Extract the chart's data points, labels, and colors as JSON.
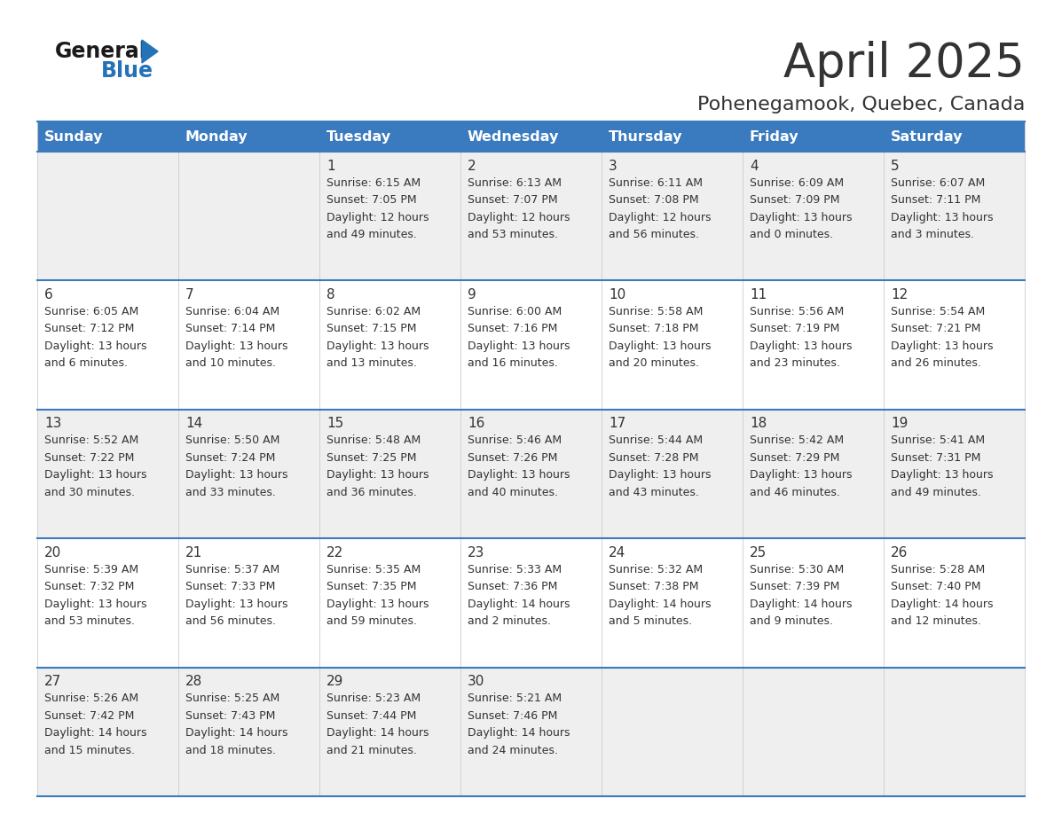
{
  "title": "April 2025",
  "subtitle": "Pohenegamook, Quebec, Canada",
  "header_bg": "#3a7abf",
  "header_text": "#ffffff",
  "row_bg_odd": "#efefef",
  "row_bg_even": "#ffffff",
  "separator_color": "#3a7abf",
  "text_color": "#333333",
  "days_of_week": [
    "Sunday",
    "Monday",
    "Tuesday",
    "Wednesday",
    "Thursday",
    "Friday",
    "Saturday"
  ],
  "logo_general_color": "#1a1a1a",
  "logo_blue_color": "#2472b8",
  "logo_triangle_color": "#2472b8",
  "calendar": [
    [
      {
        "day": "",
        "lines": []
      },
      {
        "day": "",
        "lines": []
      },
      {
        "day": "1",
        "lines": [
          "Sunrise: 6:15 AM",
          "Sunset: 7:05 PM",
          "Daylight: 12 hours",
          "and 49 minutes."
        ]
      },
      {
        "day": "2",
        "lines": [
          "Sunrise: 6:13 AM",
          "Sunset: 7:07 PM",
          "Daylight: 12 hours",
          "and 53 minutes."
        ]
      },
      {
        "day": "3",
        "lines": [
          "Sunrise: 6:11 AM",
          "Sunset: 7:08 PM",
          "Daylight: 12 hours",
          "and 56 minutes."
        ]
      },
      {
        "day": "4",
        "lines": [
          "Sunrise: 6:09 AM",
          "Sunset: 7:09 PM",
          "Daylight: 13 hours",
          "and 0 minutes."
        ]
      },
      {
        "day": "5",
        "lines": [
          "Sunrise: 6:07 AM",
          "Sunset: 7:11 PM",
          "Daylight: 13 hours",
          "and 3 minutes."
        ]
      }
    ],
    [
      {
        "day": "6",
        "lines": [
          "Sunrise: 6:05 AM",
          "Sunset: 7:12 PM",
          "Daylight: 13 hours",
          "and 6 minutes."
        ]
      },
      {
        "day": "7",
        "lines": [
          "Sunrise: 6:04 AM",
          "Sunset: 7:14 PM",
          "Daylight: 13 hours",
          "and 10 minutes."
        ]
      },
      {
        "day": "8",
        "lines": [
          "Sunrise: 6:02 AM",
          "Sunset: 7:15 PM",
          "Daylight: 13 hours",
          "and 13 minutes."
        ]
      },
      {
        "day": "9",
        "lines": [
          "Sunrise: 6:00 AM",
          "Sunset: 7:16 PM",
          "Daylight: 13 hours",
          "and 16 minutes."
        ]
      },
      {
        "day": "10",
        "lines": [
          "Sunrise: 5:58 AM",
          "Sunset: 7:18 PM",
          "Daylight: 13 hours",
          "and 20 minutes."
        ]
      },
      {
        "day": "11",
        "lines": [
          "Sunrise: 5:56 AM",
          "Sunset: 7:19 PM",
          "Daylight: 13 hours",
          "and 23 minutes."
        ]
      },
      {
        "day": "12",
        "lines": [
          "Sunrise: 5:54 AM",
          "Sunset: 7:21 PM",
          "Daylight: 13 hours",
          "and 26 minutes."
        ]
      }
    ],
    [
      {
        "day": "13",
        "lines": [
          "Sunrise: 5:52 AM",
          "Sunset: 7:22 PM",
          "Daylight: 13 hours",
          "and 30 minutes."
        ]
      },
      {
        "day": "14",
        "lines": [
          "Sunrise: 5:50 AM",
          "Sunset: 7:24 PM",
          "Daylight: 13 hours",
          "and 33 minutes."
        ]
      },
      {
        "day": "15",
        "lines": [
          "Sunrise: 5:48 AM",
          "Sunset: 7:25 PM",
          "Daylight: 13 hours",
          "and 36 minutes."
        ]
      },
      {
        "day": "16",
        "lines": [
          "Sunrise: 5:46 AM",
          "Sunset: 7:26 PM",
          "Daylight: 13 hours",
          "and 40 minutes."
        ]
      },
      {
        "day": "17",
        "lines": [
          "Sunrise: 5:44 AM",
          "Sunset: 7:28 PM",
          "Daylight: 13 hours",
          "and 43 minutes."
        ]
      },
      {
        "day": "18",
        "lines": [
          "Sunrise: 5:42 AM",
          "Sunset: 7:29 PM",
          "Daylight: 13 hours",
          "and 46 minutes."
        ]
      },
      {
        "day": "19",
        "lines": [
          "Sunrise: 5:41 AM",
          "Sunset: 7:31 PM",
          "Daylight: 13 hours",
          "and 49 minutes."
        ]
      }
    ],
    [
      {
        "day": "20",
        "lines": [
          "Sunrise: 5:39 AM",
          "Sunset: 7:32 PM",
          "Daylight: 13 hours",
          "and 53 minutes."
        ]
      },
      {
        "day": "21",
        "lines": [
          "Sunrise: 5:37 AM",
          "Sunset: 7:33 PM",
          "Daylight: 13 hours",
          "and 56 minutes."
        ]
      },
      {
        "day": "22",
        "lines": [
          "Sunrise: 5:35 AM",
          "Sunset: 7:35 PM",
          "Daylight: 13 hours",
          "and 59 minutes."
        ]
      },
      {
        "day": "23",
        "lines": [
          "Sunrise: 5:33 AM",
          "Sunset: 7:36 PM",
          "Daylight: 14 hours",
          "and 2 minutes."
        ]
      },
      {
        "day": "24",
        "lines": [
          "Sunrise: 5:32 AM",
          "Sunset: 7:38 PM",
          "Daylight: 14 hours",
          "and 5 minutes."
        ]
      },
      {
        "day": "25",
        "lines": [
          "Sunrise: 5:30 AM",
          "Sunset: 7:39 PM",
          "Daylight: 14 hours",
          "and 9 minutes."
        ]
      },
      {
        "day": "26",
        "lines": [
          "Sunrise: 5:28 AM",
          "Sunset: 7:40 PM",
          "Daylight: 14 hours",
          "and 12 minutes."
        ]
      }
    ],
    [
      {
        "day": "27",
        "lines": [
          "Sunrise: 5:26 AM",
          "Sunset: 7:42 PM",
          "Daylight: 14 hours",
          "and 15 minutes."
        ]
      },
      {
        "day": "28",
        "lines": [
          "Sunrise: 5:25 AM",
          "Sunset: 7:43 PM",
          "Daylight: 14 hours",
          "and 18 minutes."
        ]
      },
      {
        "day": "29",
        "lines": [
          "Sunrise: 5:23 AM",
          "Sunset: 7:44 PM",
          "Daylight: 14 hours",
          "and 21 minutes."
        ]
      },
      {
        "day": "30",
        "lines": [
          "Sunrise: 5:21 AM",
          "Sunset: 7:46 PM",
          "Daylight: 14 hours",
          "and 24 minutes."
        ]
      },
      {
        "day": "",
        "lines": []
      },
      {
        "day": "",
        "lines": []
      },
      {
        "day": "",
        "lines": []
      }
    ]
  ]
}
